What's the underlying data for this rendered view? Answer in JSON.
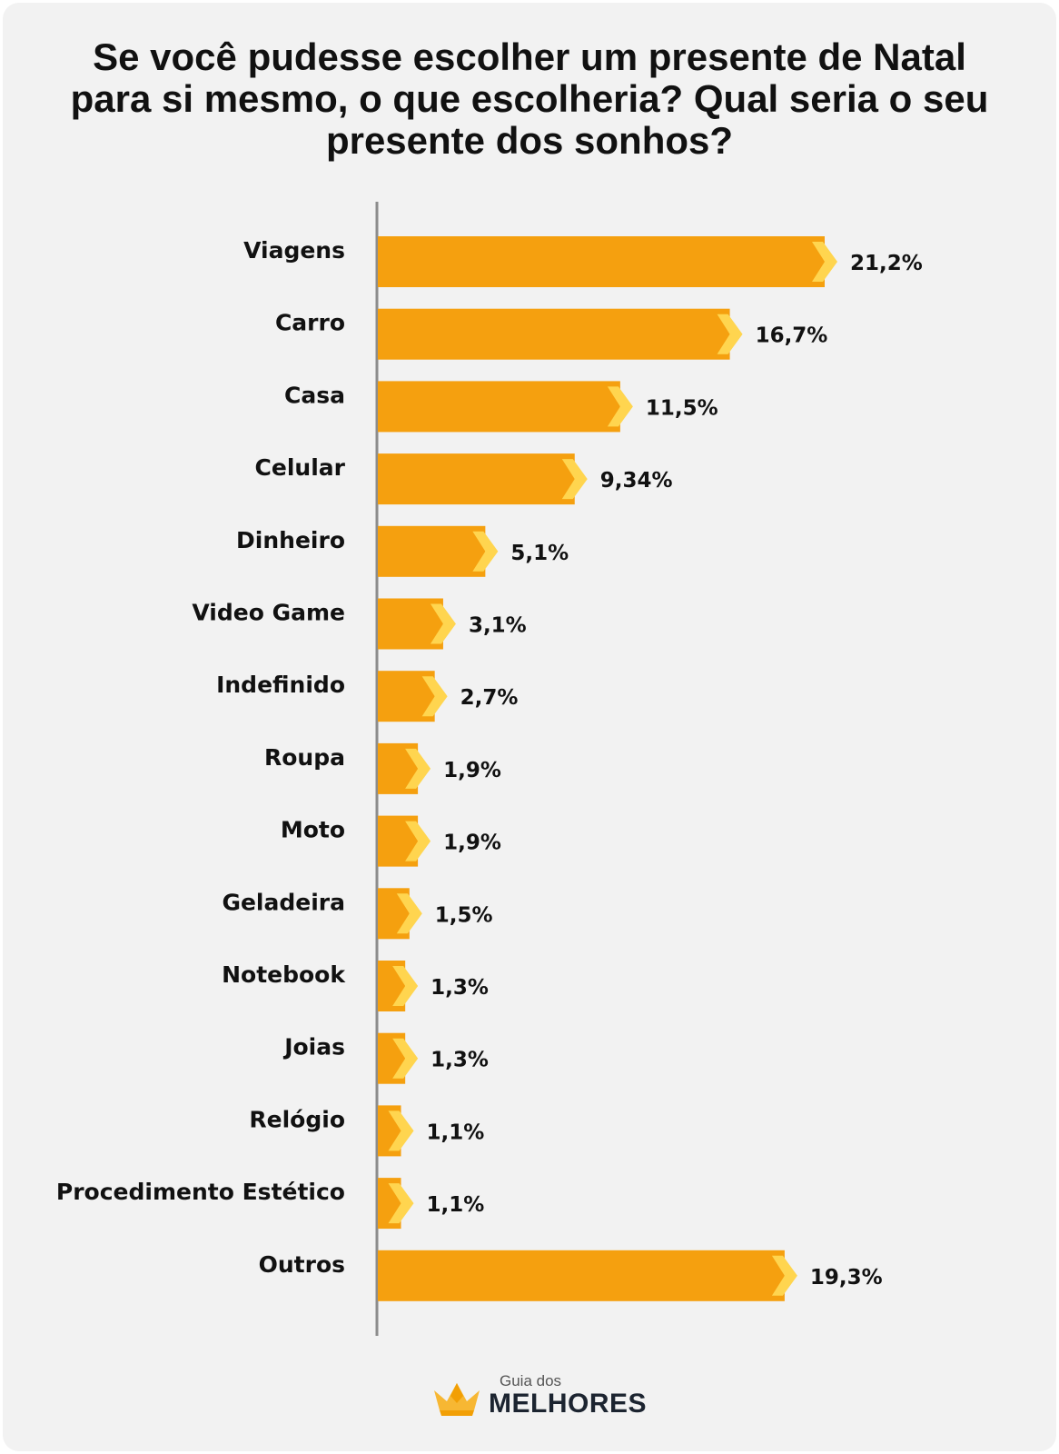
{
  "chart_data": {
    "type": "bar",
    "orientation": "horizontal",
    "title": "Se você pudesse escolher um presente de Natal para si mesmo, o que escolheria? Qual seria o seu presente dos sonhos?",
    "categories": [
      "Viagens",
      "Carro",
      "Casa",
      "Celular",
      "Dinheiro",
      "Video Game",
      "Indefinido",
      "Roupa",
      "Moto",
      "Geladeira",
      "Notebook",
      "Joias",
      "Relógio",
      "Procedimento Estético",
      "Outros"
    ],
    "values": [
      21.2,
      16.7,
      11.5,
      9.34,
      5.1,
      3.1,
      2.7,
      1.9,
      1.9,
      1.5,
      1.3,
      1.3,
      1.1,
      1.1,
      19.3
    ],
    "value_labels": [
      "21,2%",
      "16,7%",
      "11,5%",
      "9,34%",
      "5,1%",
      "3,1%",
      "2,7%",
      "1,9%",
      "1,9%",
      "1,5%",
      "1,3%",
      "1,3%",
      "1,1%",
      "1,1%",
      "19,3%"
    ],
    "xlim": [
      0,
      21.2
    ],
    "xlabel": "",
    "ylabel": "",
    "grid": false,
    "legend": "none",
    "bar_color": "#f5a00f",
    "arrow_color": "#ffd54f"
  },
  "branding": {
    "small_text": "Guia dos",
    "big_text": "MELHORES",
    "logo_icon": "crown-icon",
    "icon_color": "#f7b733"
  }
}
